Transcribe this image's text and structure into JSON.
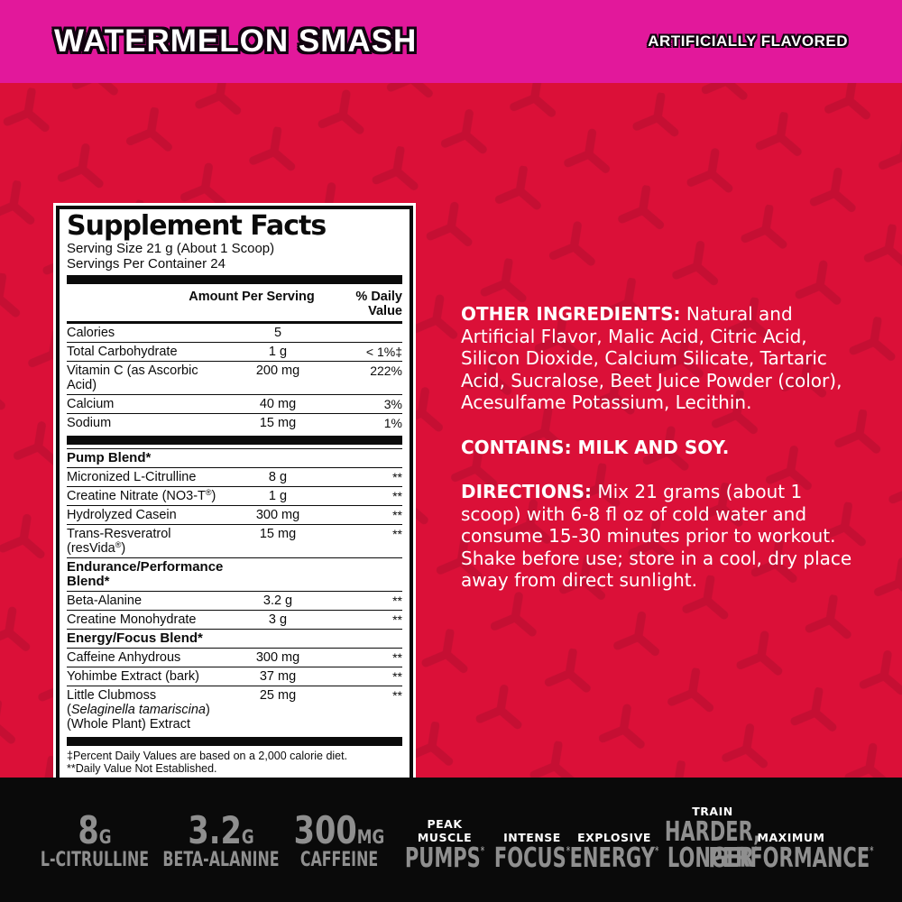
{
  "banner": {
    "title": "WATERMELON SMASH",
    "right_label": "ARTIFICIALLY FLAVORED"
  },
  "colors": {
    "banner_magenta": "#E2189B",
    "body_red": "#DB1038",
    "pattern_red": "#C30E33",
    "strip_black": "#0A0A0A",
    "badge_gray": "#8F8F8F",
    "panel_white": "#FFFFFF"
  },
  "supplement_facts": {
    "title": "Supplement Facts",
    "serving_size": "Serving Size 21 g (About 1 Scoop)",
    "servings_per_container": "Servings Per Container 24",
    "columns": {
      "amount": "Amount Per Serving",
      "daily_value": "% Daily Value"
    },
    "rows": [
      {
        "kind": "item",
        "name": "Calories",
        "amount": "5",
        "dv": ""
      },
      {
        "kind": "item",
        "name": "Total Carbohydrate",
        "amount": "1 g",
        "dv": "< 1%‡"
      },
      {
        "kind": "item",
        "name": "Vitamin C (as Ascorbic Acid)",
        "amount": "200 mg",
        "dv": "222%"
      },
      {
        "kind": "item",
        "name": "Calcium",
        "amount": "40 mg",
        "dv": "3%"
      },
      {
        "kind": "item",
        "name": "Sodium",
        "amount": "15 mg",
        "dv": "1%"
      },
      {
        "kind": "bar"
      },
      {
        "kind": "section",
        "name": "Pump Blend*"
      },
      {
        "kind": "item",
        "name": "Micronized L-Citrulline",
        "amount": "8 g",
        "dv": "**"
      },
      {
        "kind": "item",
        "name": "Creatine Nitrate (NO3-T®)",
        "amount": "1 g",
        "dv": "**"
      },
      {
        "kind": "item",
        "name": "Hydrolyzed Casein",
        "amount": "300 mg",
        "dv": "**"
      },
      {
        "kind": "item",
        "name": "Trans-Resveratrol (resVida®)",
        "amount": "15 mg",
        "dv": "**"
      },
      {
        "kind": "section",
        "name": "Endurance/Performance Blend*"
      },
      {
        "kind": "item",
        "name": "Beta-Alanine",
        "amount": "3.2 g",
        "dv": "**"
      },
      {
        "kind": "item",
        "name": "Creatine Monohydrate",
        "amount": "3 g",
        "dv": "**"
      },
      {
        "kind": "section",
        "name": "Energy/Focus Blend*"
      },
      {
        "kind": "item",
        "name": "Caffeine Anhydrous",
        "amount": "300 mg",
        "dv": "**"
      },
      {
        "kind": "item",
        "name": "Yohimbe Extract (bark)",
        "amount": "37 mg",
        "dv": "**"
      },
      {
        "kind": "item",
        "name_segments": [
          {
            "text": "Little Clubmoss ("
          },
          {
            "text": "Selaginella tamariscina",
            "italic": true
          },
          {
            "text": ") (Whole Plant) Extract"
          }
        ],
        "amount": "25 mg",
        "dv": "**"
      },
      {
        "kind": "bar"
      }
    ],
    "footnotes": [
      "‡Percent Daily Values are based on a 2,000 calorie diet.",
      "**Daily Value Not Established."
    ]
  },
  "info": {
    "other_ingredients_label": "OTHER INGREDIENTS:",
    "other_ingredients_text": " Natural and Artificial Flavor, Malic Acid, Citric Acid, Silicon Dioxide, Calcium Silicate, Tartaric Acid, Sucralose, Beet Juice Powder (color), Acesulfame Potassium, Lecithin.",
    "contains": "CONTAINS: MILK AND SOY.",
    "directions_label": "DIRECTIONS:",
    "directions_text": " Mix 21 grams (about 1 scoop) with 6-8 fl oz of cold water and consume 15-30 minutes prior to workout. Shake before use; store in a cool, dry place away from direct sunlight."
  },
  "badges": [
    {
      "type": "stat",
      "value": "8",
      "unit": "G",
      "label": "L-CITRULLINE"
    },
    {
      "type": "stat",
      "value": "3.2",
      "unit": "G",
      "label": "BETA-ALANINE"
    },
    {
      "type": "stat",
      "value": "300",
      "unit": "MG",
      "label": "CAFFEINE"
    },
    {
      "type": "claim",
      "top_lines": [
        "PEAK",
        "MUSCLE"
      ],
      "main_lines": [
        "PUMPS"
      ],
      "mark": "*"
    },
    {
      "type": "claim",
      "top_lines": [
        "INTENSE"
      ],
      "main_lines": [
        "FOCUS"
      ],
      "mark": "*"
    },
    {
      "type": "claim",
      "top_lines": [
        "EXPLOSIVE"
      ],
      "main_lines": [
        "ENERGY"
      ],
      "mark": "*"
    },
    {
      "type": "claim",
      "top_lines": [
        "TRAIN"
      ],
      "main_lines": [
        "HARDER,",
        "LONGER"
      ],
      "mark": "*"
    },
    {
      "type": "claim",
      "top_lines": [
        "MAXIMUM"
      ],
      "main_lines": [
        "PERFORMANCE"
      ],
      "mark": "*"
    }
  ]
}
